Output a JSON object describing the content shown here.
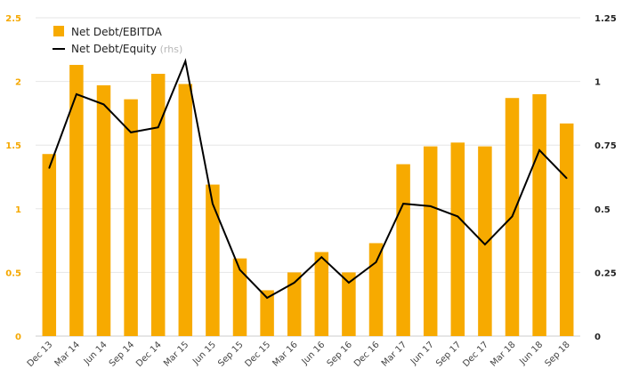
{
  "chart_data": {
    "type": "bar+line",
    "categories": [
      "Dec 13",
      "Mar 14",
      "Jun 14",
      "Sep 14",
      "Dec 14",
      "Mar 15",
      "Jun 15",
      "Sep 15",
      "Dec 15",
      "Mar 16",
      "Jun 16",
      "Sep 16",
      "Dec 16",
      "Mar 17",
      "Jun 17",
      "Sep 17",
      "Dec 17",
      "Mar 18",
      "Jun 18",
      "Sep 18"
    ],
    "series": [
      {
        "name": "Net Debt/EBITDA",
        "kind": "bar",
        "axis": "left",
        "color": "#f7aa00",
        "values": [
          1.43,
          2.13,
          1.97,
          1.86,
          2.06,
          1.98,
          1.19,
          0.61,
          0.36,
          0.5,
          0.66,
          0.5,
          0.73,
          1.35,
          1.49,
          1.52,
          1.49,
          1.87,
          1.9,
          1.67
        ]
      },
      {
        "name": "Net Debt/Equity",
        "name_suffix": "(rhs)",
        "kind": "line",
        "axis": "right",
        "color": "#000000",
        "values": [
          0.66,
          0.95,
          0.91,
          0.8,
          0.82,
          1.08,
          0.52,
          0.26,
          0.15,
          0.21,
          0.31,
          0.21,
          0.29,
          0.52,
          0.51,
          0.47,
          0.36,
          0.47,
          0.73,
          0.62
        ]
      }
    ],
    "left_axis": {
      "ylim": [
        0,
        2.5
      ],
      "ticks": [
        "0",
        "0.5",
        "1",
        "1.5",
        "2",
        "2.5"
      ],
      "tick_values": [
        0,
        0.5,
        1,
        1.5,
        2,
        2.5
      ],
      "color": "#f5a800"
    },
    "right_axis": {
      "ylim": [
        0,
        1.25
      ],
      "ticks": [
        "0",
        "0.25",
        "0.5",
        "0.75",
        "1",
        "1.25"
      ],
      "tick_values": [
        0,
        0.25,
        0.5,
        0.75,
        1,
        1.25
      ],
      "color": "#222222"
    },
    "title": "",
    "xlabel": "",
    "grid": true,
    "legend_position": "top-left"
  }
}
